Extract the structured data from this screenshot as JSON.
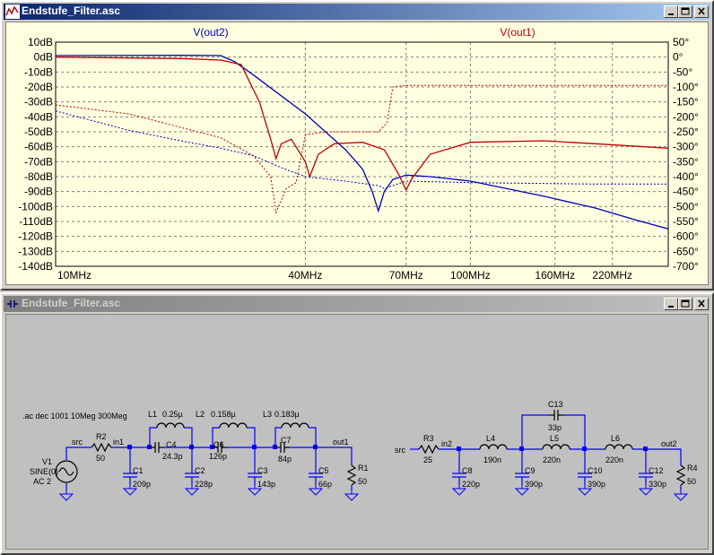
{
  "plot_window": {
    "title": "Endstufe_Filter.asc"
  },
  "schematic_window": {
    "title": "Endstufe_Filter.asc"
  },
  "chart_data": {
    "type": "line",
    "x_scale": "log",
    "x_unit": "Hz",
    "xlim": [
      10000000,
      300000000
    ],
    "x_ticks": [
      {
        "value": 10000000,
        "label": "10MHz"
      },
      {
        "value": 40000000,
        "label": "40MHz"
      },
      {
        "value": 70000000,
        "label": "70MHz"
      },
      {
        "value": 100000000,
        "label": "100MHz"
      },
      {
        "value": 160000000,
        "label": "160MHz"
      },
      {
        "value": 220000000,
        "label": "220MHz"
      }
    ],
    "ylim": [
      -140,
      10
    ],
    "y_ticks": [
      "10dB",
      "0dB",
      "-10dB",
      "-20dB",
      "-30dB",
      "-40dB",
      "-50dB",
      "-60dB",
      "-70dB",
      "-80dB",
      "-90dB",
      "-100dB",
      "-110dB",
      "-120dB",
      "-130dB",
      "-140dB"
    ],
    "y2lim": [
      -700,
      50
    ],
    "y2_ticks": [
      "50°",
      "0°",
      "-50°",
      "-100°",
      "-150°",
      "-200°",
      "-250°",
      "-300°",
      "-350°",
      "-400°",
      "-450°",
      "-500°",
      "-550°",
      "-600°",
      "-650°",
      "-700°"
    ],
    "grid": true,
    "series": [
      {
        "name": "V(out2)",
        "color": "#0000c0",
        "magnitude_db": [
          [
            10,
            1
          ],
          [
            20,
            1.2
          ],
          [
            25,
            1
          ],
          [
            27,
            -3
          ],
          [
            30,
            -12
          ],
          [
            40,
            -38
          ],
          [
            50,
            -62
          ],
          [
            55,
            -75
          ],
          [
            58,
            -90
          ],
          [
            60,
            -103
          ],
          [
            62,
            -90
          ],
          [
            65,
            -82
          ],
          [
            70,
            -79
          ],
          [
            80,
            -80
          ],
          [
            100,
            -83
          ],
          [
            150,
            -93
          ],
          [
            200,
            -101
          ],
          [
            250,
            -109
          ],
          [
            300,
            -115
          ]
        ],
        "phase_deg": [
          [
            10,
            -180
          ],
          [
            15,
            -245
          ],
          [
            20,
            -280
          ],
          [
            25,
            -305
          ],
          [
            30,
            -330
          ],
          [
            35,
            -370
          ],
          [
            40,
            -400
          ],
          [
            50,
            -415
          ],
          [
            60,
            -430
          ],
          [
            62,
            -440
          ],
          [
            70,
            -415
          ],
          [
            100,
            -420
          ],
          [
            200,
            -425
          ],
          [
            300,
            -425
          ]
        ]
      },
      {
        "name": "V(out1)",
        "color": "#c00000",
        "magnitude_db": [
          [
            10,
            0
          ],
          [
            20,
            -1
          ],
          [
            25,
            -2
          ],
          [
            28,
            -5
          ],
          [
            31,
            -30
          ],
          [
            33,
            -55
          ],
          [
            34,
            -68
          ],
          [
            35,
            -58
          ],
          [
            37,
            -55
          ],
          [
            40,
            -70
          ],
          [
            41,
            -80
          ],
          [
            43,
            -65
          ],
          [
            47,
            -58
          ],
          [
            55,
            -57
          ],
          [
            62,
            -62
          ],
          [
            67,
            -78
          ],
          [
            70,
            -89
          ],
          [
            72,
            -82
          ],
          [
            80,
            -65
          ],
          [
            100,
            -57
          ],
          [
            150,
            -56
          ],
          [
            200,
            -58
          ],
          [
            300,
            -61
          ]
        ],
        "phase_deg": [
          [
            10,
            -160
          ],
          [
            15,
            -190
          ],
          [
            20,
            -235
          ],
          [
            25,
            -270
          ],
          [
            30,
            -330
          ],
          [
            33,
            -400
          ],
          [
            34,
            -520
          ],
          [
            36,
            -440
          ],
          [
            38,
            -420
          ],
          [
            40,
            -260
          ],
          [
            45,
            -250
          ],
          [
            55,
            -250
          ],
          [
            60,
            -250
          ],
          [
            63,
            -220
          ],
          [
            65,
            -100
          ],
          [
            70,
            -95
          ],
          [
            100,
            -95
          ],
          [
            200,
            -95
          ],
          [
            300,
            -95
          ]
        ]
      }
    ]
  },
  "schematic": {
    "directive": ".ac dec 1001 10Meg 300Meg",
    "labels": {
      "v1": "V1",
      "v1_value": "SINE(0)",
      "v1_ac": "AC 2",
      "src1": "src",
      "r2": "R2",
      "r2v": "50",
      "in1": "in1",
      "c1": "C1",
      "c1v": "209p",
      "l1": "L1",
      "l1v": "0.25µ",
      "c4": "C4",
      "c4v": "24.3p",
      "l2": "L2",
      "l2v": "0.158µ",
      "c2": "C2",
      "c2v": "228p",
      "c6": "C6",
      "c6v": "126p",
      "l3": "L3",
      "l3v": "0.183µ",
      "c3": "C3",
      "c3v": "143p",
      "c7": "C7",
      "c7v": "84p",
      "c5": "C5",
      "c5v": "66p",
      "out1": "out1",
      "r1": "R1",
      "r1v": "50",
      "src2": "src",
      "r3": "R3",
      "r3v": "25",
      "in2": "in2",
      "l4": "L4",
      "l4v": "190n",
      "c8": "C8",
      "c8v": "220p",
      "c13": "C13",
      "c13v": "33p",
      "l5": "L5",
      "l5v": "220n",
      "c9": "C9",
      "c9v": "390p",
      "l6": "L6",
      "l6v": "220n",
      "c10": "C10",
      "c10v": "390p",
      "out2": "out2",
      "c12": "C12",
      "c12v": "330p",
      "r4": "R4",
      "r4v": "50"
    }
  }
}
